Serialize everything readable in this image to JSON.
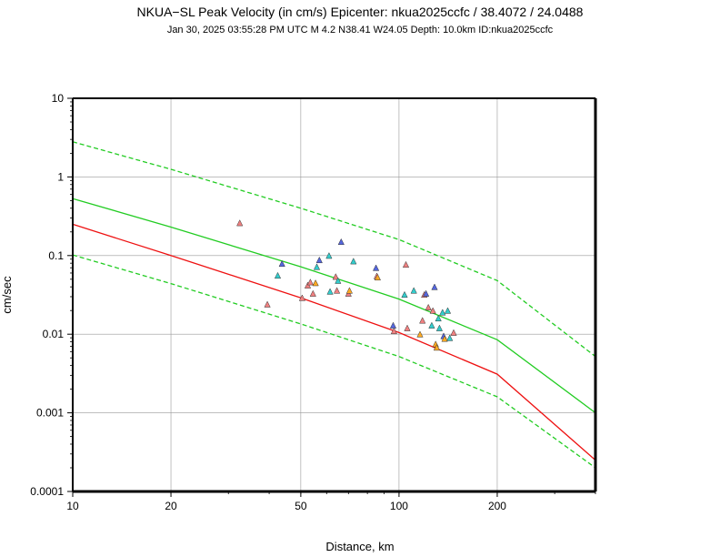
{
  "chart_data": {
    "type": "scatter",
    "title": "NKUA−SL Peak Velocity (in cm/s) Epicenter: nkua2025ccfc / 38.4072 / 24.0488",
    "subtitle": "Jan 30, 2025 03:55:28 PM UTC    M 4.2    N38.41 W24.05    Depth: 10.0km    ID:nkua2025ccfc",
    "xlabel": "Distance, km",
    "ylabel": "cm/sec",
    "x_scale": "log",
    "y_scale": "log",
    "xlim": [
      10,
      400
    ],
    "ylim": [
      0.0001,
      10
    ],
    "grid": true,
    "x_ticks": [
      {
        "value": 10,
        "label": "10"
      },
      {
        "value": 20,
        "label": "20"
      },
      {
        "value": 50,
        "label": "50"
      },
      {
        "value": 100,
        "label": "100"
      },
      {
        "value": 200,
        "label": "200"
      }
    ],
    "y_ticks": [
      {
        "value": 10,
        "label": "10"
      },
      {
        "value": 1,
        "label": "1"
      },
      {
        "value": 0.1,
        "label": "0.1"
      },
      {
        "value": 0.01,
        "label": "0.01"
      },
      {
        "value": 0.001,
        "label": "0.001"
      },
      {
        "value": 0.0001,
        "label": "0.0001"
      }
    ],
    "lines": [
      {
        "style": "dashed",
        "color": "#22cc22",
        "x": [
          10,
          20,
          50,
          100,
          200,
          400
        ],
        "y": [
          2.8,
          1.25,
          0.4,
          0.16,
          0.048,
          0.0052
        ]
      },
      {
        "style": "solid",
        "color": "#22cc22",
        "x": [
          10,
          20,
          50,
          100,
          200,
          400
        ],
        "y": [
          0.53,
          0.23,
          0.072,
          0.028,
          0.0085,
          0.001
        ]
      },
      {
        "style": "solid",
        "color": "#ee1111",
        "x": [
          10,
          20,
          50,
          100,
          200,
          400
        ],
        "y": [
          0.25,
          0.1,
          0.029,
          0.0105,
          0.0031,
          0.00025
        ]
      },
      {
        "style": "dashed",
        "color": "#22cc22",
        "x": [
          10,
          20,
          50,
          100,
          200,
          400
        ],
        "y": [
          0.102,
          0.044,
          0.0135,
          0.0052,
          0.0016,
          0.0002
        ]
      }
    ],
    "points": [
      {
        "x": 32.5,
        "y": 0.26,
        "color": "#f08080"
      },
      {
        "x": 39.5,
        "y": 0.024,
        "color": "#f08080"
      },
      {
        "x": 42.5,
        "y": 0.056,
        "color": "#33cccc"
      },
      {
        "x": 43.8,
        "y": 0.079,
        "color": "#5566dd"
      },
      {
        "x": 50.5,
        "y": 0.029,
        "color": "#f08080"
      },
      {
        "x": 52.5,
        "y": 0.042,
        "color": "#f08080"
      },
      {
        "x": 53.5,
        "y": 0.046,
        "color": "#f08080"
      },
      {
        "x": 54.5,
        "y": 0.033,
        "color": "#f08080"
      },
      {
        "x": 55.5,
        "y": 0.045,
        "color": "#ffaa22"
      },
      {
        "x": 56.0,
        "y": 0.072,
        "color": "#33cccc"
      },
      {
        "x": 57.0,
        "y": 0.088,
        "color": "#5566dd"
      },
      {
        "x": 61.0,
        "y": 0.1,
        "color": "#33cccc"
      },
      {
        "x": 61.5,
        "y": 0.035,
        "color": "#33cccc"
      },
      {
        "x": 64.0,
        "y": 0.054,
        "color": "#f08080"
      },
      {
        "x": 64.5,
        "y": 0.036,
        "color": "#f08080"
      },
      {
        "x": 65.0,
        "y": 0.048,
        "color": "#33cccc"
      },
      {
        "x": 66.5,
        "y": 0.15,
        "color": "#5566dd"
      },
      {
        "x": 70.0,
        "y": 0.033,
        "color": "#f08080"
      },
      {
        "x": 70.5,
        "y": 0.036,
        "color": "#ffaa22"
      },
      {
        "x": 72.5,
        "y": 0.085,
        "color": "#33cccc"
      },
      {
        "x": 85.0,
        "y": 0.07,
        "color": "#5566dd"
      },
      {
        "x": 85.5,
        "y": 0.055,
        "color": "#f08080"
      },
      {
        "x": 86.0,
        "y": 0.053,
        "color": "#ffaa22"
      },
      {
        "x": 96.0,
        "y": 0.013,
        "color": "#5566dd"
      },
      {
        "x": 96.5,
        "y": 0.011,
        "color": "#f08080"
      },
      {
        "x": 104.0,
        "y": 0.032,
        "color": "#33cccc"
      },
      {
        "x": 105.0,
        "y": 0.077,
        "color": "#f08080"
      },
      {
        "x": 106.0,
        "y": 0.012,
        "color": "#f08080"
      },
      {
        "x": 111.0,
        "y": 0.036,
        "color": "#33cccc"
      },
      {
        "x": 116.0,
        "y": 0.01,
        "color": "#ffaa22"
      },
      {
        "x": 118.0,
        "y": 0.015,
        "color": "#f08080"
      },
      {
        "x": 119.5,
        "y": 0.032,
        "color": "#f08080"
      },
      {
        "x": 121.0,
        "y": 0.033,
        "color": "#5566dd"
      },
      {
        "x": 123.0,
        "y": 0.022,
        "color": "#f08080"
      },
      {
        "x": 126.0,
        "y": 0.013,
        "color": "#33cccc"
      },
      {
        "x": 127.0,
        "y": 0.02,
        "color": "#f08080"
      },
      {
        "x": 128.5,
        "y": 0.04,
        "color": "#5566dd"
      },
      {
        "x": 129.5,
        "y": 0.0075,
        "color": "#ffaa22"
      },
      {
        "x": 130.5,
        "y": 0.0068,
        "color": "#ffaa22"
      },
      {
        "x": 132.0,
        "y": 0.016,
        "color": "#33cccc"
      },
      {
        "x": 133.0,
        "y": 0.012,
        "color": "#33cccc"
      },
      {
        "x": 136.0,
        "y": 0.019,
        "color": "#33cccc"
      },
      {
        "x": 137.0,
        "y": 0.0095,
        "color": "#5566dd"
      },
      {
        "x": 138.0,
        "y": 0.0088,
        "color": "#ffaa22"
      },
      {
        "x": 141.0,
        "y": 0.02,
        "color": "#33cccc"
      },
      {
        "x": 143.0,
        "y": 0.009,
        "color": "#33cccc"
      },
      {
        "x": 147.0,
        "y": 0.0105,
        "color": "#f08080"
      }
    ]
  }
}
